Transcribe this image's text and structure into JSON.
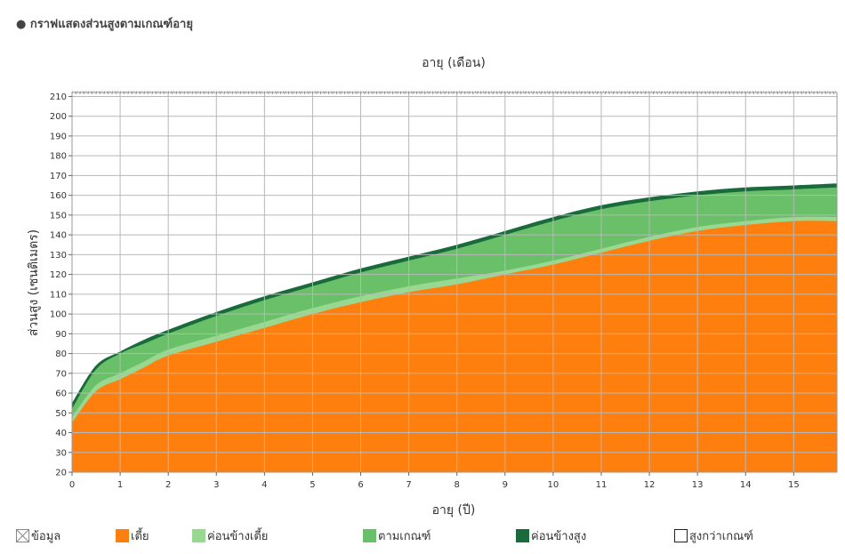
{
  "title": "● กราฟแสดงส่วนสูงตามเกณฑ์อายุ",
  "chart_data": {
    "type": "area",
    "title": "",
    "top_axis_label": "อายุ (เดือน)",
    "xlabel": "อายุ (ปี)",
    "ylabel": "ส่วนสูง (เซนติเมตร)",
    "xlim": [
      0,
      15.9
    ],
    "ylim": [
      20,
      212
    ],
    "x_ticks": [
      0,
      1,
      2,
      3,
      4,
      5,
      6,
      7,
      8,
      9,
      10,
      11,
      12,
      13,
      14,
      15
    ],
    "y_ticks": [
      20,
      30,
      40,
      50,
      60,
      70,
      80,
      90,
      100,
      110,
      120,
      130,
      140,
      150,
      160,
      170,
      180,
      190,
      200,
      210
    ],
    "grid": true,
    "stacked": true,
    "x": [
      0,
      0.5,
      1,
      1.5,
      2,
      3,
      4,
      5,
      6,
      7,
      8,
      9,
      10,
      11,
      12,
      13,
      14,
      15,
      15.9
    ],
    "series": [
      {
        "name": "เตี้ย",
        "color": "#ff7f0e",
        "values": [
          45,
          61,
          67,
          73,
          79,
          86,
          93,
          100,
          106,
          111,
          115,
          120,
          125,
          131,
          137,
          142,
          145,
          147,
          147
        ]
      },
      {
        "name": "ค่อนข้างเตี้ย",
        "color": "#98d890",
        "values": [
          48,
          64,
          70,
          76,
          82,
          89,
          96,
          103,
          109,
          114,
          118,
          122,
          127,
          133,
          139,
          144,
          147,
          149,
          149
        ]
      },
      {
        "name": "ตามเกณฑ์",
        "color": "#6abf69",
        "values": [
          52,
          72,
          80,
          85,
          90,
          99,
          107,
          114,
          121,
          127,
          133,
          140,
          147,
          153,
          157,
          160,
          162,
          163,
          164
        ]
      },
      {
        "name": "ค่อนข้างสูง",
        "color": "#1a6b3c",
        "values": [
          55,
          74,
          81,
          87,
          92,
          101,
          109,
          116,
          123,
          129,
          135,
          142,
          149,
          155,
          159,
          162,
          164,
          165,
          166
        ]
      }
    ],
    "legend": [
      {
        "label": "ข้อมูล",
        "style": "cross",
        "color": "#888888"
      },
      {
        "label": "เตี้ย",
        "style": "fill",
        "color": "#ff7f0e"
      },
      {
        "label": "ค่อนข้างเตี้ย",
        "style": "fill",
        "color": "#98d890"
      },
      {
        "label": "ตามเกณฑ์",
        "style": "fill",
        "color": "#6abf69"
      },
      {
        "label": "ค่อนข้างสูง",
        "style": "fill",
        "color": "#1a6b3c"
      },
      {
        "label": "สูงกว่าเกณฑ์",
        "style": "outline",
        "color": "#222222"
      }
    ],
    "legend_position": "bottom"
  }
}
